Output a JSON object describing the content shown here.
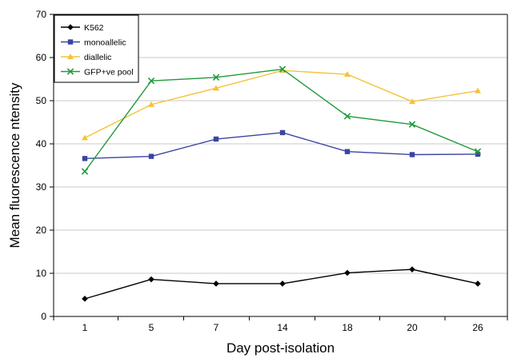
{
  "chart_data": {
    "type": "line",
    "xlabel": "Day post-isolation",
    "ylabel": "Mean fluorescence ntensity",
    "categories": [
      "1",
      "5",
      "7",
      "14",
      "18",
      "20",
      "26"
    ],
    "ylim": [
      0,
      70
    ],
    "yticks": [
      0,
      10,
      20,
      30,
      40,
      50,
      60,
      70
    ],
    "grid": "horizontal",
    "legend": "top-left",
    "series": [
      {
        "name": "K562",
        "color": "#000000",
        "marker": "diamond",
        "values": [
          4.1,
          8.6,
          7.6,
          7.6,
          10.1,
          10.9,
          7.6
        ]
      },
      {
        "name": "monoallelic",
        "color": "#3b44a0",
        "marker": "square",
        "values": [
          36.6,
          37.1,
          41.1,
          42.6,
          38.2,
          37.5,
          37.6
        ]
      },
      {
        "name": "diallelic",
        "color": "#f5c23c",
        "marker": "triangle",
        "values": [
          41.4,
          49.1,
          52.9,
          57.0,
          56.1,
          49.8,
          52.3
        ]
      },
      {
        "name": "GFP+ve pool",
        "color": "#1f9a3c",
        "marker": "x",
        "values": [
          33.6,
          54.6,
          55.4,
          57.3,
          46.4,
          44.5,
          38.2
        ]
      }
    ]
  }
}
